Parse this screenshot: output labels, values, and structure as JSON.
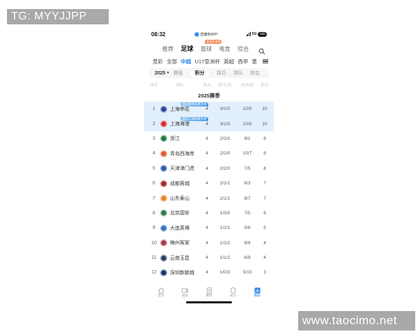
{
  "watermarks": {
    "top_left": "TG: MYYJJPP",
    "bottom_right": "www.taocimo.net"
  },
  "status_bar": {
    "time": "08:32",
    "app_name": "直播吧APP",
    "network": "5G",
    "battery": "100"
  },
  "top_nav": {
    "tabs": [
      {
        "label": "推荐",
        "selected": false
      },
      {
        "label": "足球",
        "selected": true
      },
      {
        "label": "篮球",
        "selected": false,
        "badge": "女篮亚洲杯"
      },
      {
        "label": "电竞",
        "selected": false
      },
      {
        "label": "综合",
        "selected": false
      }
    ]
  },
  "league_nav": {
    "items": [
      {
        "label": "竞彩",
        "selected": false
      },
      {
        "label": "全部",
        "selected": false
      },
      {
        "label": "中超",
        "selected": true
      },
      {
        "label": "U17亚洲杯",
        "selected": false
      },
      {
        "label": "英超",
        "selected": false
      },
      {
        "label": "西甲",
        "selected": false
      },
      {
        "label": "意",
        "selected": false
      }
    ]
  },
  "filter_bar": {
    "season": "2025",
    "tabs": [
      {
        "label": "赛程",
        "selected": false
      },
      {
        "label": "积分",
        "selected": true
      },
      {
        "label": "球员",
        "selected": false
      },
      {
        "label": "球队",
        "selected": false
      },
      {
        "label": "转会",
        "selected": false
      }
    ]
  },
  "standings": {
    "section_title": "2025赛季",
    "columns": [
      "排名",
      "球队",
      "场次",
      "胜/平/负",
      "进/失球",
      "积分"
    ],
    "rows": [
      {
        "rank": "1",
        "team": "上海申花",
        "played": "4",
        "wdl": "3/1/0",
        "goals": "10/5",
        "points": "10",
        "badge": "亚冠精英联赛资格",
        "highlight": true,
        "logo_color": "#27459c"
      },
      {
        "rank": "2",
        "team": "上海海港",
        "played": "4",
        "wdl": "3/1/0",
        "goals": "10/5",
        "points": "10",
        "badge": "亚冠二级联赛资格",
        "highlight": true,
        "logo_color": "#d22c32"
      },
      {
        "rank": "3",
        "team": "浙江",
        "played": "4",
        "wdl": "2/2/0",
        "goals": "9/2",
        "points": "8",
        "highlight": false,
        "logo_color": "#1f7a3d"
      },
      {
        "rank": "4",
        "team": "青岛西海岸",
        "played": "4",
        "wdl": "2/2/0",
        "goals": "10/7",
        "points": "8",
        "highlight": false,
        "logo_color": "#e05a32"
      },
      {
        "rank": "5",
        "team": "天津津门虎",
        "played": "4",
        "wdl": "2/2/0",
        "goals": "7/5",
        "points": "8",
        "highlight": false,
        "logo_color": "#2b5cab"
      },
      {
        "rank": "6",
        "team": "成都蓉城",
        "played": "4",
        "wdl": "2/1/1",
        "goals": "6/3",
        "points": "7",
        "highlight": false,
        "logo_color": "#a5252b"
      },
      {
        "rank": "7",
        "team": "山东泰山",
        "played": "4",
        "wdl": "2/1/1",
        "goals": "8/7",
        "points": "7",
        "highlight": false,
        "logo_color": "#e8851f"
      },
      {
        "rank": "8",
        "team": "北京国安",
        "played": "4",
        "wdl": "1/3/0",
        "goals": "7/5",
        "points": "6",
        "highlight": false,
        "logo_color": "#2d7e46"
      },
      {
        "rank": "9",
        "team": "大连英博",
        "played": "4",
        "wdl": "1/2/1",
        "goals": "5/6",
        "points": "5",
        "highlight": false,
        "logo_color": "#3673bd"
      },
      {
        "rank": "10",
        "team": "梅州客家",
        "played": "4",
        "wdl": "1/1/2",
        "goals": "8/9",
        "points": "4",
        "highlight": false,
        "logo_color": "#a63a4a"
      },
      {
        "rank": "11",
        "team": "云南玉昆",
        "played": "4",
        "wdl": "1/1/2",
        "goals": "6/9",
        "points": "4",
        "highlight": false,
        "logo_color": "#2c3e63"
      },
      {
        "rank": "12",
        "team": "深圳新鹏城",
        "played": "4",
        "wdl": "1/0/3",
        "goals": "5/10",
        "points": "3",
        "highlight": false,
        "logo_color": "#16386f"
      }
    ]
  },
  "bottom_nav": {
    "items": [
      {
        "label": "首页",
        "icon": "home-icon",
        "selected": false
      },
      {
        "label": "视频",
        "icon": "video-icon",
        "selected": false
      },
      {
        "label": "赛程",
        "icon": "schedule-icon",
        "selected": false
      },
      {
        "label": "关注",
        "icon": "shield-icon",
        "selected": false
      },
      {
        "label": "数据",
        "icon": "data-icon",
        "selected": true
      }
    ]
  },
  "colors": {
    "accent": "#2f87f2",
    "highlight_row": "#e2effc",
    "badge_orange": "#f0885a"
  }
}
